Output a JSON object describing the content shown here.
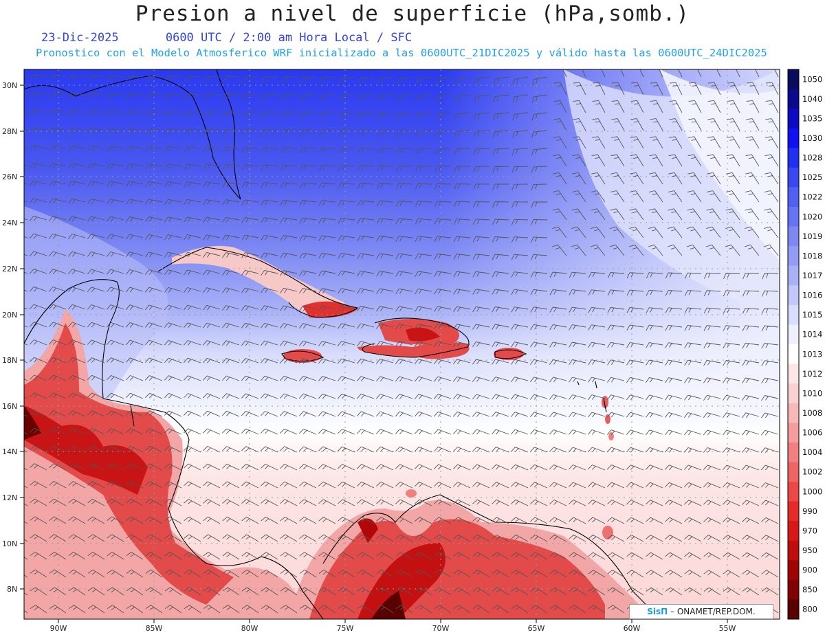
{
  "title": "Presion a nivel de superficie (hPa,somb.)",
  "date": "23-Dic-2025",
  "time_line": "0600 UTC / 2:00 am Hora Local / SFC",
  "forecast_line": "Pronostico con el Modelo Atmosferico WRF inicializado a las 0600UTC_21DIC2025 y válido hasta las  0600UTC_24DIC2025",
  "lat_labels": [
    "30N",
    "28N",
    "26N",
    "24N",
    "22N",
    "20N",
    "18N",
    "16N",
    "14N",
    "12N",
    "10N",
    "8N"
  ],
  "lon_labels": [
    "90W",
    "85W",
    "80W",
    "75W",
    "70W",
    "65W",
    "60W",
    "55W"
  ],
  "colorbar": {
    "levels": [
      "1050",
      "1040",
      "1035",
      "1030",
      "1028",
      "1025",
      "1022",
      "1020",
      "1019",
      "1018",
      "1017",
      "1016",
      "1015",
      "1014",
      "1013",
      "1012",
      "1010",
      "1008",
      "1006",
      "1004",
      "1002",
      "1000",
      "990",
      "970",
      "950",
      "900",
      "850",
      "800"
    ],
    "colors": [
      "#0b0b5e",
      "#0a0a8c",
      "#0b0bc4",
      "#1010f0",
      "#2030f0",
      "#3a48f0",
      "#5060f0",
      "#6673f2",
      "#7d88f3",
      "#939df5",
      "#aab2f7",
      "#c2c8f9",
      "#d9ddfb",
      "#eef0fd",
      "#ffffff",
      "#fde6e6",
      "#fbd0d0",
      "#f8b8b8",
      "#f59c9c",
      "#f28080",
      "#ef6464",
      "#ec4848",
      "#e52a2a",
      "#d81818",
      "#c00c0c",
      "#a00505",
      "#800202",
      "#5a0000"
    ]
  },
  "credit": {
    "brand": "SisΠ",
    "text": " – ONAMET/REP.DOM."
  }
}
